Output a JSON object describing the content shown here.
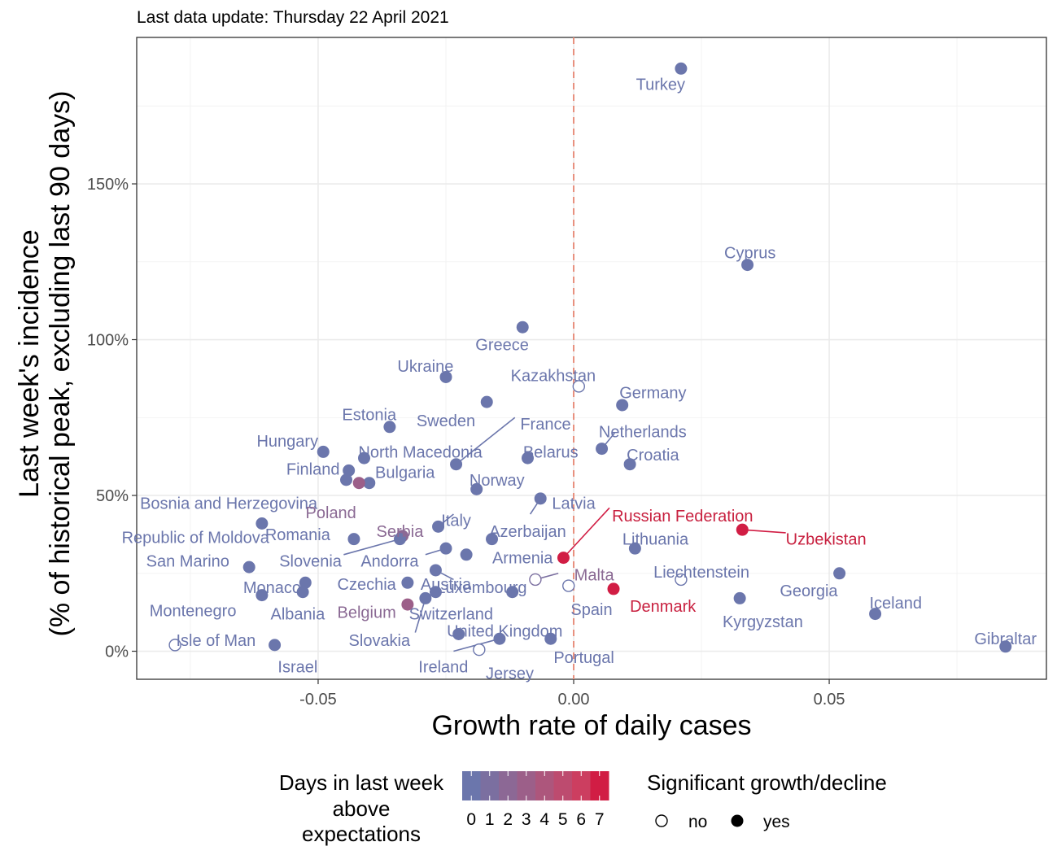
{
  "chart_data": {
    "type": "scatter",
    "subtitle": "Last data update: Thursday 22 April 2021",
    "xlabel": "Growth rate of daily cases",
    "ylabel_lines": [
      "Last week's incidence",
      "(% of historical peak, excluding last 90 days)"
    ],
    "xlim": [
      -0.0855,
      0.0925
    ],
    "ylim": [
      -9,
      197
    ],
    "x_ticks": [
      -0.05,
      0.0,
      0.05
    ],
    "x_tick_labels": [
      "-0.05",
      "0.00",
      "0.05"
    ],
    "y_ticks": [
      0,
      50,
      100,
      150
    ],
    "y_tick_labels": [
      "0%",
      "50%",
      "100%",
      "150%"
    ],
    "reference_line_x": 0,
    "grid": true,
    "color_scale": {
      "title_lines": [
        "Days in last week",
        "above",
        "expectations"
      ],
      "values": [
        "0",
        "1",
        "2",
        "3",
        "4",
        "5",
        "6",
        "7"
      ],
      "colors": [
        "#6b76ac",
        "#7b6fa0",
        "#8c6895",
        "#9c5f89",
        "#ad567c",
        "#bd4b6f",
        "#cc3e60",
        "#d11d44"
      ]
    },
    "significance_legend": {
      "title": "Significant growth/decline",
      "entries": [
        {
          "label": "no",
          "filled": false
        },
        {
          "label": "yes",
          "filled": true
        }
      ]
    },
    "points": [
      {
        "name": "Turkey",
        "x": 0.021,
        "y": 187,
        "days": 0,
        "sig": true,
        "lx": 0.017,
        "ly": 182,
        "anchor": "middle"
      },
      {
        "name": "Cyprus",
        "x": 0.034,
        "y": 124,
        "days": 0,
        "sig": true,
        "lx": 0.0345,
        "ly": 128,
        "anchor": "middle"
      },
      {
        "name": "Greece",
        "x": -0.01,
        "y": 104,
        "days": 0,
        "sig": true,
        "lx": -0.014,
        "ly": 98.5,
        "anchor": "middle"
      },
      {
        "name": "Ukraine",
        "x": -0.025,
        "y": 88,
        "days": 0,
        "sig": true,
        "lx": -0.029,
        "ly": 91.5,
        "anchor": "middle"
      },
      {
        "name": "Kazakhstan",
        "x": 0.001,
        "y": 85,
        "days": 0,
        "sig": false,
        "lx": -0.004,
        "ly": 88.5,
        "anchor": "middle"
      },
      {
        "name": "Sweden",
        "x": -0.017,
        "y": 80,
        "days": 0,
        "sig": true,
        "lx": -0.025,
        "ly": 74,
        "anchor": "middle"
      },
      {
        "name": "Germany",
        "x": 0.0095,
        "y": 79,
        "days": 0,
        "sig": true,
        "lx": 0.0155,
        "ly": 83,
        "anchor": "middle"
      },
      {
        "name": "Estonia",
        "x": -0.036,
        "y": 72,
        "days": 0,
        "sig": true,
        "lx": -0.04,
        "ly": 76,
        "anchor": "middle"
      },
      {
        "name": "France",
        "x": -0.023,
        "y": 60,
        "days": 0,
        "sig": true,
        "lx": -0.0055,
        "ly": 73,
        "anchor": "middle",
        "leader": [
          -0.0115,
          75
        ]
      },
      {
        "name": "Netherlands",
        "x": 0.0055,
        "y": 65,
        "days": 0,
        "sig": true,
        "lx": 0.0135,
        "ly": 70.5,
        "anchor": "middle",
        "leader": [
          0.008,
          70
        ]
      },
      {
        "name": "Hungary",
        "x": -0.049,
        "y": 64,
        "days": 0,
        "sig": true,
        "lx": -0.056,
        "ly": 67.5,
        "anchor": "middle"
      },
      {
        "name": "North Macedonia",
        "x": -0.041,
        "y": 62,
        "days": 0,
        "sig": true,
        "lx": -0.03,
        "ly": 64,
        "anchor": "middle"
      },
      {
        "name": "Belarus",
        "x": -0.009,
        "y": 62,
        "days": 0,
        "sig": true,
        "lx": -0.0045,
        "ly": 64,
        "anchor": "middle"
      },
      {
        "name": "Croatia",
        "x": 0.011,
        "y": 60,
        "days": 0,
        "sig": true,
        "lx": 0.0155,
        "ly": 63,
        "anchor": "middle"
      },
      {
        "name": "Finland",
        "x": -0.044,
        "y": 58,
        "days": 0,
        "sig": true,
        "lx": -0.051,
        "ly": 58.5,
        "anchor": "middle"
      },
      {
        "name": "Bulgaria",
        "x": -0.04,
        "y": 54,
        "days": 0,
        "sig": true,
        "lx": -0.033,
        "ly": 57.5,
        "anchor": "middle"
      },
      {
        "name": "Norway",
        "x": -0.019,
        "y": 52,
        "days": 0,
        "sig": true,
        "lx": -0.015,
        "ly": 55,
        "anchor": "middle"
      },
      {
        "name": "Bosnia and Herzegovina",
        "x": -0.0445,
        "y": 55,
        "days": 0,
        "sig": true,
        "lx": -0.0675,
        "ly": 47.5,
        "anchor": "middle"
      },
      {
        "name": "Poland",
        "x": -0.042,
        "y": 54,
        "days": 3,
        "sig": true,
        "lx": -0.0475,
        "ly": 44.5,
        "anchor": "middle"
      },
      {
        "name": "Latvia",
        "x": -0.0065,
        "y": 49,
        "days": 0,
        "sig": true,
        "lx": 0.0,
        "ly": 47.5,
        "anchor": "middle",
        "leader": [
          -0.0085,
          44
        ]
      },
      {
        "name": "Italy",
        "x": -0.0265,
        "y": 40,
        "days": 0,
        "sig": true,
        "lx": -0.023,
        "ly": 42,
        "anchor": "middle",
        "leader": [
          -0.0235,
          44
        ]
      },
      {
        "name": "Serbia",
        "x": -0.0335,
        "y": 37,
        "days": 2,
        "sig": true,
        "lx": -0.034,
        "ly": 38.5,
        "anchor": "middle"
      },
      {
        "name": "Russian Federation",
        "x": -0.002,
        "y": 30,
        "days": 7,
        "sig": true,
        "lx": 0.0075,
        "ly": 43.5,
        "anchor": "start",
        "leader": [
          0.007,
          46
        ]
      },
      {
        "name": "Republic of Moldova",
        "x": -0.061,
        "y": 41,
        "days": 0,
        "sig": true,
        "lx": -0.074,
        "ly": 36.5,
        "anchor": "middle"
      },
      {
        "name": "Romania",
        "x": -0.043,
        "y": 36,
        "days": 0,
        "sig": true,
        "lx": -0.054,
        "ly": 37.5,
        "anchor": "middle"
      },
      {
        "name": "Azerbaijan",
        "x": -0.016,
        "y": 36,
        "days": 0,
        "sig": true,
        "lx": -0.009,
        "ly": 38.5,
        "anchor": "middle"
      },
      {
        "name": "Uzbekistan",
        "x": 0.033,
        "y": 39,
        "days": 7,
        "sig": true,
        "lx": 0.0415,
        "ly": 36,
        "anchor": "start",
        "leader": [
          0.0415,
          38
        ]
      },
      {
        "name": "Lithuania",
        "x": 0.012,
        "y": 33,
        "days": 0,
        "sig": true,
        "lx": 0.016,
        "ly": 36,
        "anchor": "middle"
      },
      {
        "name": "Slovenia",
        "x": -0.034,
        "y": 36,
        "days": 0,
        "sig": true,
        "lx": -0.0515,
        "ly": 29,
        "anchor": "middle",
        "leader": [
          -0.045,
          31
        ]
      },
      {
        "name": "Andorra",
        "x": -0.025,
        "y": 33,
        "days": 0,
        "sig": true,
        "lx": -0.036,
        "ly": 29,
        "anchor": "middle",
        "leader": [
          -0.029,
          31
        ]
      },
      {
        "name": "Armenia",
        "x": -0.021,
        "y": 31,
        "days": 0,
        "sig": true,
        "lx": -0.01,
        "ly": 30,
        "anchor": "middle"
      },
      {
        "name": "San Marino",
        "x": -0.0635,
        "y": 27,
        "days": 0,
        "sig": true,
        "lx": -0.0755,
        "ly": 29,
        "anchor": "middle"
      },
      {
        "name": "Liechtenstein",
        "x": 0.021,
        "y": 23,
        "days": 0,
        "sig": false,
        "lx": 0.025,
        "ly": 25.5,
        "anchor": "middle"
      },
      {
        "name": "Georgia",
        "x": 0.052,
        "y": 25,
        "days": 0,
        "sig": true,
        "lx": 0.046,
        "ly": 19.5,
        "anchor": "middle"
      },
      {
        "name": "Malta",
        "x": -0.0075,
        "y": 23,
        "days": 1,
        "sig": false,
        "lx": 0.004,
        "ly": 24.5,
        "anchor": "middle",
        "leader": [
          -0.003,
          25
        ]
      },
      {
        "name": "Austria",
        "x": -0.027,
        "y": 26,
        "days": 0,
        "sig": true,
        "lx": -0.025,
        "ly": 21.5,
        "anchor": "middle",
        "leader": [
          -0.0235,
          23
        ]
      },
      {
        "name": "Luxembourg",
        "x": -0.012,
        "y": 19,
        "days": 0,
        "sig": true,
        "lx": -0.018,
        "ly": 20.5,
        "anchor": "middle"
      },
      {
        "name": "Czechia",
        "x": -0.0325,
        "y": 22,
        "days": 0,
        "sig": true,
        "lx": -0.0405,
        "ly": 21.5,
        "anchor": "middle"
      },
      {
        "name": "Monaco",
        "x": -0.0525,
        "y": 22,
        "days": 0,
        "sig": true,
        "lx": -0.059,
        "ly": 20.5,
        "anchor": "middle"
      },
      {
        "name": "Denmark",
        "x": 0.0078,
        "y": 20,
        "days": 7,
        "sig": true,
        "lx": 0.011,
        "ly": 14.5,
        "anchor": "start"
      },
      {
        "name": "Albania",
        "x": -0.053,
        "y": 19,
        "days": 0,
        "sig": true,
        "lx": -0.054,
        "ly": 12,
        "anchor": "middle"
      },
      {
        "name": "Switzerland",
        "x": -0.027,
        "y": 19,
        "days": 0,
        "sig": true,
        "lx": -0.024,
        "ly": 12,
        "anchor": "middle"
      },
      {
        "name": "Spain",
        "x": -0.001,
        "y": 21,
        "days": 0,
        "sig": false,
        "lx": 0.0035,
        "ly": 13.5,
        "anchor": "middle"
      },
      {
        "name": "Kyrgyzstan",
        "x": 0.0325,
        "y": 17,
        "days": 0,
        "sig": true,
        "lx": 0.037,
        "ly": 9.5,
        "anchor": "middle"
      },
      {
        "name": "Iceland",
        "x": 0.059,
        "y": 12,
        "days": 0,
        "sig": true,
        "lx": 0.063,
        "ly": 15.5,
        "anchor": "middle"
      },
      {
        "name": "Montenegro",
        "x": -0.061,
        "y": 18,
        "days": 0,
        "sig": true,
        "lx": -0.0745,
        "ly": 13,
        "anchor": "middle"
      },
      {
        "name": "Belgium",
        "x": -0.0325,
        "y": 15,
        "days": 3,
        "sig": true,
        "lx": -0.0405,
        "ly": 12.5,
        "anchor": "middle"
      },
      {
        "name": "Slovakia",
        "x": -0.029,
        "y": 17,
        "days": 0,
        "sig": true,
        "lx": -0.038,
        "ly": 3.5,
        "anchor": "middle",
        "leader": [
          -0.031,
          6
        ]
      },
      {
        "name": "United Kingdom",
        "x": -0.0225,
        "y": 5.5,
        "days": 0,
        "sig": true,
        "lx": -0.0135,
        "ly": 6.5,
        "anchor": "middle"
      },
      {
        "name": "Isle of Man",
        "x": -0.078,
        "y": 2,
        "days": 0,
        "sig": false,
        "lx": -0.07,
        "ly": 3.5,
        "anchor": "middle"
      },
      {
        "name": "Israel",
        "x": -0.0585,
        "y": 2,
        "days": 0,
        "sig": true,
        "lx": -0.054,
        "ly": -5,
        "anchor": "middle"
      },
      {
        "name": "Gibraltar",
        "x": 0.0845,
        "y": 1.5,
        "days": 0,
        "sig": true,
        "lx": 0.0845,
        "ly": 4,
        "anchor": "middle"
      },
      {
        "name": "Portugal",
        "x": -0.0045,
        "y": 4,
        "days": 0,
        "sig": true,
        "lx": 0.002,
        "ly": -2,
        "anchor": "middle"
      },
      {
        "name": "Ireland",
        "x": -0.0145,
        "y": 4,
        "days": 0,
        "sig": true,
        "lx": -0.0255,
        "ly": -5,
        "anchor": "middle",
        "leader": [
          -0.0235,
          0
        ]
      },
      {
        "name": "Jersey",
        "x": -0.0185,
        "y": 0.5,
        "days": 0,
        "sig": false,
        "lx": -0.0125,
        "ly": -7,
        "anchor": "middle"
      }
    ]
  }
}
